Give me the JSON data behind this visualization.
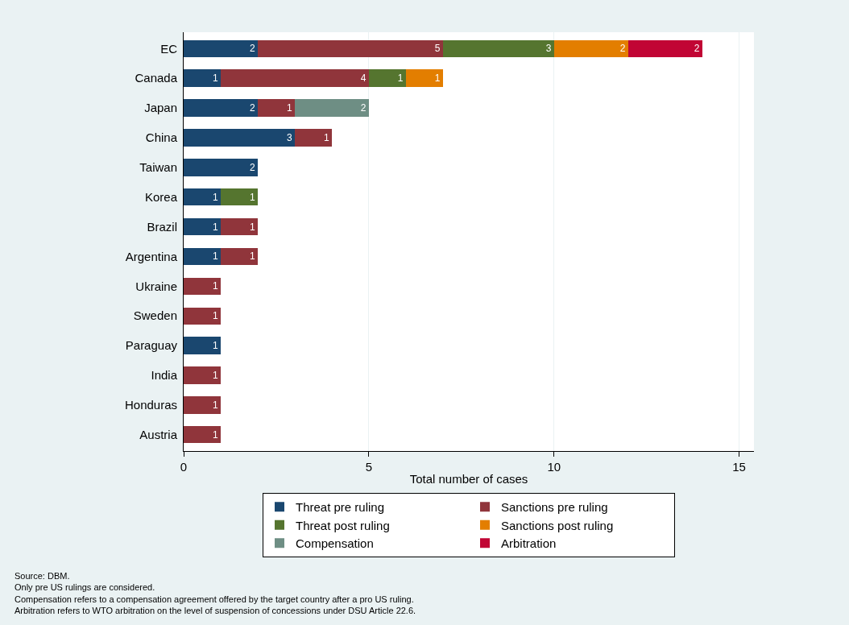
{
  "chart_data": {
    "type": "bar",
    "orientation": "horizontal",
    "stacked": true,
    "xlabel": "Total number of cases",
    "categories": [
      "EC",
      "Canada",
      "Japan",
      "China",
      "Taiwan",
      "Korea",
      "Brazil",
      "Argentina",
      "Ukraine",
      "Sweden",
      "Paraguay",
      "India",
      "Honduras",
      "Austria"
    ],
    "series": [
      {
        "name": "Threat pre ruling",
        "color": "#1a476f",
        "values": [
          2,
          1,
          2,
          3,
          2,
          1,
          1,
          1,
          null,
          null,
          1,
          null,
          null,
          null
        ]
      },
      {
        "name": "Sanctions pre ruling",
        "color": "#90353b",
        "values": [
          5,
          4,
          1,
          1,
          null,
          null,
          1,
          1,
          1,
          1,
          null,
          1,
          1,
          1
        ]
      },
      {
        "name": "Threat post ruling",
        "color": "#55752f",
        "values": [
          3,
          1,
          null,
          null,
          null,
          1,
          null,
          null,
          null,
          null,
          null,
          null,
          null,
          null
        ]
      },
      {
        "name": "Sanctions post ruling",
        "color": "#e37e00",
        "values": [
          2,
          1,
          null,
          null,
          null,
          null,
          null,
          null,
          null,
          null,
          null,
          null,
          null,
          null
        ]
      },
      {
        "name": "Compensation",
        "color": "#6e8e84",
        "values": [
          null,
          null,
          2,
          null,
          null,
          null,
          null,
          null,
          null,
          null,
          null,
          null,
          null,
          null
        ]
      },
      {
        "name": "Arbitration",
        "color": "#c10534",
        "values": [
          2,
          null,
          null,
          null,
          null,
          null,
          null,
          null,
          null,
          null,
          null,
          null,
          null,
          null
        ]
      }
    ],
    "xlim": [
      0,
      15.4
    ],
    "xticks": [
      0,
      5,
      10,
      15
    ],
    "grid": "x",
    "legend": "bottom",
    "data_labels": true,
    "annotations": [
      "Source: DBM.",
      "Only pre US rulings are considered.",
      "Compensation refers to a compensation agreement offered by the target country after a pro US ruling.",
      "Arbitration refers to WTO arbitration on the level of suspension of concessions under DSU Article 22.6."
    ]
  }
}
